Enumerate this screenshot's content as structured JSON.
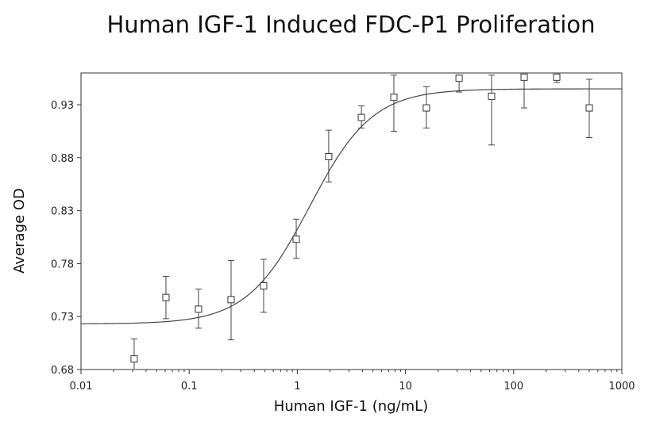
{
  "chart_data": {
    "type": "scatter",
    "title": "Human IGF-1 Induced FDC-P1 Proliferation",
    "xlabel": "Human IGF-1 (ng/mL)",
    "ylabel": "Average OD",
    "xscale": "log",
    "xlim": [
      0.01,
      1000
    ],
    "ylim": [
      0.68,
      0.96
    ],
    "x_ticks": [
      "0.01",
      "0.1",
      "1",
      "10",
      "100",
      "1000"
    ],
    "y_ticks": [
      "0.68",
      "0.73",
      "0.78",
      "0.83",
      "0.88",
      "0.93"
    ],
    "grid": false,
    "legend": "none",
    "series": [
      {
        "type": "scatter_with_error_bars",
        "marker": "open-square",
        "x": [
          0.031,
          0.061,
          0.122,
          0.244,
          0.488,
          0.977,
          1.95,
          3.91,
          7.81,
          15.6,
          31.3,
          62.5,
          125,
          250,
          500
        ],
        "y": [
          0.69,
          0.748,
          0.737,
          0.746,
          0.759,
          0.803,
          0.881,
          0.918,
          0.937,
          0.927,
          0.955,
          0.938,
          0.956,
          0.956,
          0.927
        ],
        "y_err_low": [
          0.68,
          0.728,
          0.719,
          0.708,
          0.734,
          0.785,
          0.857,
          0.908,
          0.905,
          0.908,
          0.942,
          0.892,
          0.927,
          0.951,
          0.899
        ],
        "y_err_high": [
          0.709,
          0.768,
          0.756,
          0.783,
          0.784,
          0.822,
          0.906,
          0.929,
          0.958,
          0.947,
          0.958,
          0.958,
          0.958,
          0.958,
          0.954
        ]
      },
      {
        "type": "fitted_curve",
        "model": "4PL",
        "bottom": 0.723,
        "top": 0.945,
        "ec50": 1.3,
        "hill": 1.5
      }
    ]
  }
}
